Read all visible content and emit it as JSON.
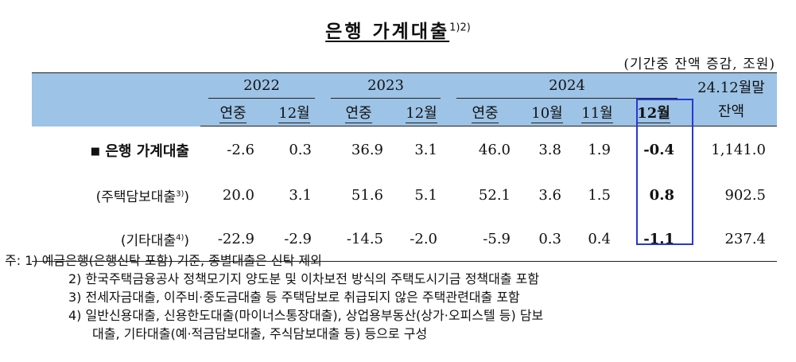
{
  "title": {
    "text": "은행 가계대출",
    "sup": "1)2)"
  },
  "unit": "(기간중 잔액 증감, 조원)",
  "header": {
    "years": [
      "2022",
      "2023",
      "2024"
    ],
    "balance_top": "24.12월말",
    "balance_bottom": "잔액",
    "sub": [
      "연중",
      "12월",
      "연중",
      "12월",
      "연중",
      "10월",
      "11월",
      "12월"
    ]
  },
  "rows": [
    {
      "marker": "■",
      "label": "은행 가계대출",
      "sup": "",
      "values": [
        "-2.6",
        "0.3",
        "36.9",
        "3.1",
        "46.0",
        "3.8",
        "1.9",
        "-0.4",
        "1,141.0"
      ]
    },
    {
      "marker": "",
      "label": "(주택담보대출",
      "sup": "3)",
      "close": ")",
      "values": [
        "20.0",
        "3.1",
        "51.6",
        "5.1",
        "52.1",
        "3.6",
        "1.5",
        "0.8",
        "902.5"
      ]
    },
    {
      "marker": "",
      "label": "(기타대출",
      "sup": "4)",
      "close": ")",
      "values": [
        "-22.9",
        "-2.9",
        "-14.5",
        "-2.0",
        "-5.9",
        "0.3",
        "0.4",
        "-1.1",
        "237.4"
      ]
    }
  ],
  "notes": [
    "주: 1) 예금은행(은행신탁 포함) 기준, 종별대출은 신탁 제외",
    "2) 한국주택금융공사 정책모기지 양도분 및 이차보전 방식의 주택도시기금 정책대출 포함",
    "3) 전세자금대출, 이주비·중도금대출 등 주택담보로 취급되지 않은 주택관련대출 포함",
    "4) 일반신용대출, 신용한도대출(마이너스통장대출), 상업용부동산(상가·오피스텔 등) 담보",
    "대출, 기타대출(예·적금담보대출, 주식담보대출 등) 등으로 구성"
  ],
  "colors": {
    "header_bg": "#9dc3e6",
    "highlight_border": "#2638d6"
  }
}
